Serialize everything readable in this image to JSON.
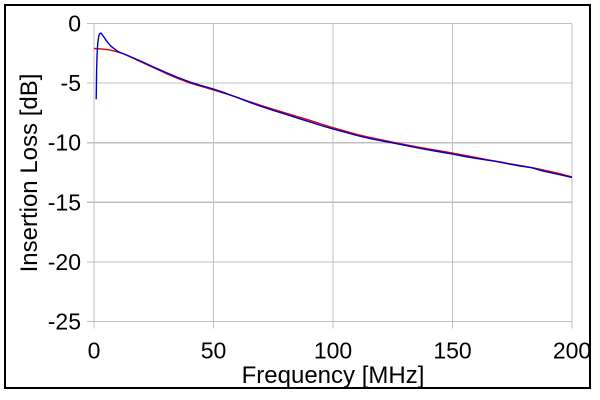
{
  "chart_data": {
    "type": "line",
    "title": "",
    "xlabel": "Frequency [MHz]",
    "ylabel": "Insertion Loss [dB]",
    "xlim": [
      0,
      200
    ],
    "ylim": [
      -25,
      0
    ],
    "x_ticks": [
      0,
      50,
      100,
      150,
      200
    ],
    "y_ticks": [
      0,
      -5,
      -10,
      -15,
      -20,
      -25
    ],
    "x_tick_labels": [
      "0",
      "50",
      "100",
      "150",
      "200"
    ],
    "y_tick_labels": [
      "0",
      "-5",
      "-10",
      "-15",
      "-20",
      "-25"
    ],
    "grid": true,
    "legend": "none",
    "colors": {
      "grid": "#c0c0c0",
      "axis": "#c0c0c0",
      "text": "#000000",
      "frame": "#000000",
      "background": "#ffffff"
    },
    "series": [
      {
        "name": "red-curve",
        "color": "#dd0000",
        "points": [
          [
            0,
            -2.1
          ],
          [
            3,
            -2.13
          ],
          [
            6,
            -2.2
          ],
          [
            9,
            -2.33
          ],
          [
            12,
            -2.52
          ],
          [
            15,
            -2.78
          ],
          [
            20,
            -3.25
          ],
          [
            25,
            -3.72
          ],
          [
            30,
            -4.18
          ],
          [
            35,
            -4.6
          ],
          [
            40,
            -4.98
          ],
          [
            45,
            -5.28
          ],
          [
            50,
            -5.57
          ],
          [
            55,
            -5.88
          ],
          [
            60,
            -6.2
          ],
          [
            65,
            -6.55
          ],
          [
            70,
            -6.88
          ],
          [
            75,
            -7.2
          ],
          [
            80,
            -7.5
          ],
          [
            85,
            -7.8
          ],
          [
            90,
            -8.1
          ],
          [
            95,
            -8.43
          ],
          [
            100,
            -8.74
          ],
          [
            105,
            -9.02
          ],
          [
            110,
            -9.3
          ],
          [
            115,
            -9.54
          ],
          [
            120,
            -9.75
          ],
          [
            125,
            -9.96
          ],
          [
            130,
            -10.15
          ],
          [
            135,
            -10.34
          ],
          [
            140,
            -10.52
          ],
          [
            145,
            -10.7
          ],
          [
            150,
            -10.87
          ],
          [
            155,
            -11.06
          ],
          [
            160,
            -11.25
          ],
          [
            165,
            -11.44
          ],
          [
            170,
            -11.62
          ],
          [
            175,
            -11.8
          ],
          [
            180,
            -11.97
          ],
          [
            185,
            -12.16
          ],
          [
            190,
            -12.38
          ],
          [
            195,
            -12.6
          ],
          [
            200,
            -12.87
          ]
        ]
      },
      {
        "name": "blue-curve",
        "color": "#0000cc",
        "points": [
          [
            0.9,
            -6.35
          ],
          [
            1.0,
            -5.2
          ],
          [
            1.1,
            -4.0
          ],
          [
            1.3,
            -2.6
          ],
          [
            1.6,
            -1.6
          ],
          [
            2.0,
            -1.05
          ],
          [
            2.4,
            -0.85
          ],
          [
            2.9,
            -0.8
          ],
          [
            3.4,
            -0.92
          ],
          [
            4,
            -1.1
          ],
          [
            5,
            -1.4
          ],
          [
            6,
            -1.65
          ],
          [
            7,
            -1.88
          ],
          [
            8,
            -2.05
          ],
          [
            9,
            -2.2
          ],
          [
            10,
            -2.35
          ],
          [
            12,
            -2.52
          ],
          [
            15,
            -2.76
          ],
          [
            20,
            -3.2
          ],
          [
            25,
            -3.66
          ],
          [
            30,
            -4.1
          ],
          [
            35,
            -4.52
          ],
          [
            40,
            -4.9
          ],
          [
            45,
            -5.22
          ],
          [
            50,
            -5.5
          ],
          [
            55,
            -5.84
          ],
          [
            60,
            -6.22
          ],
          [
            65,
            -6.6
          ],
          [
            70,
            -6.96
          ],
          [
            75,
            -7.3
          ],
          [
            80,
            -7.6
          ],
          [
            85,
            -7.92
          ],
          [
            90,
            -8.24
          ],
          [
            95,
            -8.56
          ],
          [
            100,
            -8.85
          ],
          [
            105,
            -9.12
          ],
          [
            110,
            -9.4
          ],
          [
            115,
            -9.63
          ],
          [
            120,
            -9.83
          ],
          [
            125,
            -10.02
          ],
          [
            130,
            -10.22
          ],
          [
            135,
            -10.42
          ],
          [
            140,
            -10.6
          ],
          [
            145,
            -10.78
          ],
          [
            150,
            -10.96
          ],
          [
            155,
            -11.15
          ],
          [
            158,
            -11.26
          ],
          [
            163,
            -11.42
          ],
          [
            168,
            -11.56
          ],
          [
            173,
            -11.76
          ],
          [
            178,
            -11.95
          ],
          [
            183,
            -12.1
          ],
          [
            188,
            -12.38
          ],
          [
            193,
            -12.6
          ],
          [
            200,
            -12.92
          ]
        ]
      }
    ]
  }
}
